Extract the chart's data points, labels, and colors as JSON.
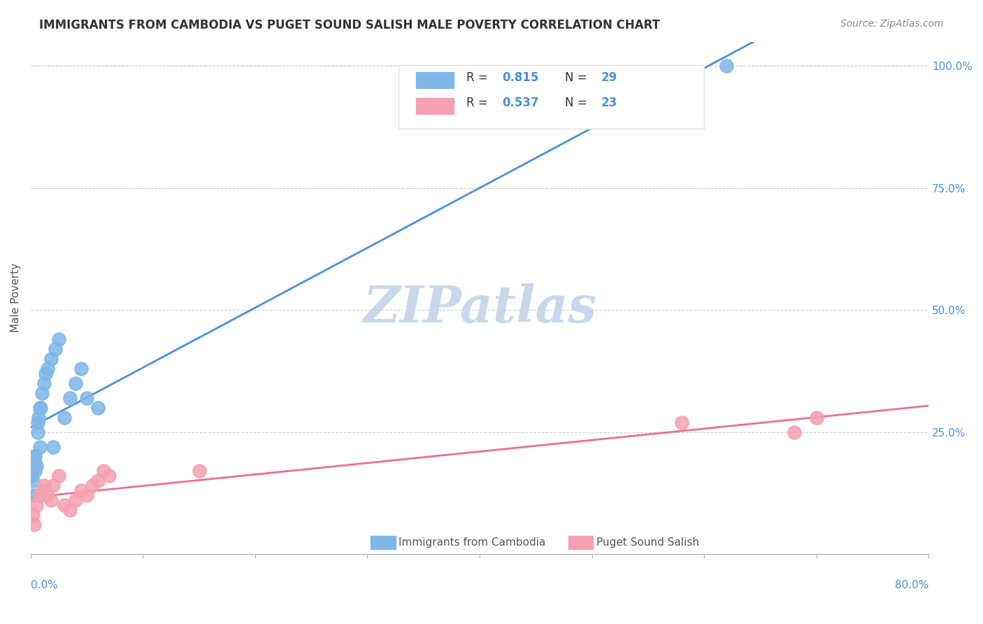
{
  "title": "IMMIGRANTS FROM CAMBODIA VS PUGET SOUND SALISH MALE POVERTY CORRELATION CHART",
  "source": "Source: ZipAtlas.com",
  "ylabel": "Male Poverty",
  "xlim": [
    0.0,
    0.8
  ],
  "ylim": [
    0.0,
    1.05
  ],
  "watermark": "ZIPatlas",
  "blue_color": "#7EB6E8",
  "pink_color": "#F4A0B0",
  "blue_line_color": "#4A90D9",
  "pink_line_color": "#E87090",
  "title_color": "#333333",
  "axis_label_color": "#4A90D9",
  "watermark_color": "#C8D8EC",
  "legend_label1": "Immigrants from Cambodia",
  "legend_label2": "Puget Sound Salish",
  "cambodia_x": [
    0.005,
    0.008,
    0.002,
    0.003,
    0.001,
    0.004,
    0.006,
    0.007,
    0.009,
    0.003,
    0.012,
    0.015,
    0.018,
    0.022,
    0.025,
    0.03,
    0.035,
    0.04,
    0.045,
    0.05,
    0.002,
    0.004,
    0.006,
    0.008,
    0.01,
    0.013,
    0.02,
    0.06,
    0.62
  ],
  "cambodia_y": [
    0.18,
    0.22,
    0.15,
    0.2,
    0.16,
    0.17,
    0.25,
    0.28,
    0.3,
    0.19,
    0.35,
    0.38,
    0.4,
    0.42,
    0.44,
    0.28,
    0.32,
    0.35,
    0.38,
    0.32,
    0.12,
    0.2,
    0.27,
    0.3,
    0.33,
    0.37,
    0.22,
    0.3,
    1.0
  ],
  "salish_x": [
    0.002,
    0.003,
    0.005,
    0.008,
    0.01,
    0.012,
    0.015,
    0.018,
    0.02,
    0.025,
    0.03,
    0.035,
    0.04,
    0.045,
    0.05,
    0.055,
    0.06,
    0.065,
    0.07,
    0.58,
    0.68,
    0.7,
    0.15
  ],
  "salish_y": [
    0.08,
    0.06,
    0.1,
    0.12,
    0.13,
    0.14,
    0.12,
    0.11,
    0.14,
    0.16,
    0.1,
    0.09,
    0.11,
    0.13,
    0.12,
    0.14,
    0.15,
    0.17,
    0.16,
    0.27,
    0.25,
    0.28,
    0.17
  ]
}
